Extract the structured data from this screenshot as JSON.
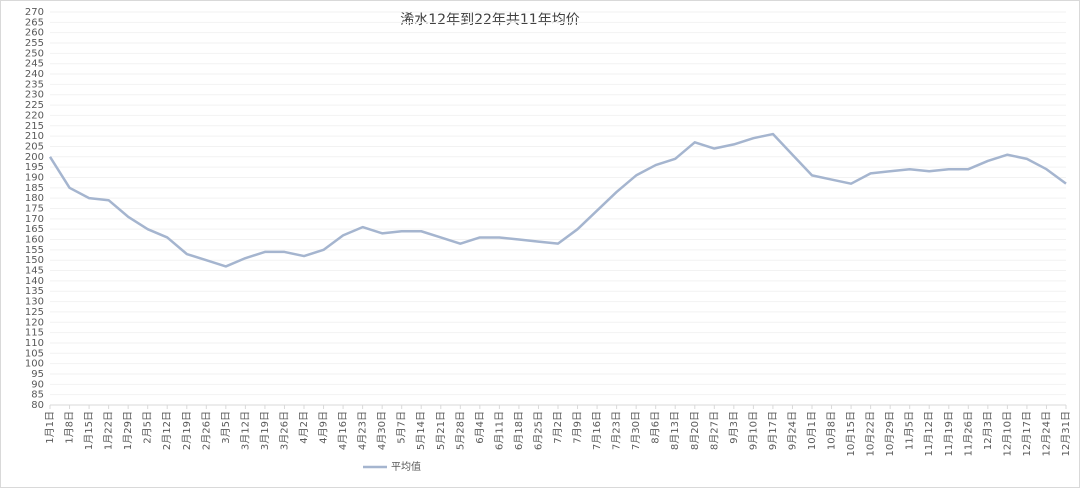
{
  "chart_data": {
    "type": "line",
    "title": "浠水12年到22年共11年均价",
    "categories": [
      "1月1日",
      "1月8日",
      "1月15日",
      "1月22日",
      "1月29日",
      "2月5日",
      "2月12日",
      "2月19日",
      "2月26日",
      "3月5日",
      "3月12日",
      "3月19日",
      "3月26日",
      "4月2日",
      "4月9日",
      "4月16日",
      "4月23日",
      "4月30日",
      "5月7日",
      "5月14日",
      "5月21日",
      "5月28日",
      "6月4日",
      "6月11日",
      "6月18日",
      "6月25日",
      "7月2日",
      "7月9日",
      "7月16日",
      "7月23日",
      "7月30日",
      "8月6日",
      "8月13日",
      "8月20日",
      "8月27日",
      "9月3日",
      "9月10日",
      "9月17日",
      "9月24日",
      "10月1日",
      "10月8日",
      "10月15日",
      "10月22日",
      "10月29日",
      "11月5日",
      "11月12日",
      "11月19日",
      "11月26日",
      "12月3日",
      "12月10日",
      "12月17日",
      "12月24日",
      "12月31日"
    ],
    "series": [
      {
        "name": "平均值",
        "color": "#a5b5cf",
        "values": [
          200,
          185,
          180,
          179,
          171,
          165,
          161,
          153,
          150,
          147,
          151,
          154,
          154,
          152,
          155,
          162,
          166,
          163,
          164,
          164,
          161,
          158,
          161,
          161,
          160,
          159,
          158,
          165,
          174,
          183,
          191,
          196,
          199,
          207,
          204,
          206,
          209,
          211,
          201,
          191,
          189,
          187,
          192,
          193,
          194,
          193,
          194,
          194,
          198,
          201,
          199,
          194,
          187
        ]
      }
    ],
    "ylim": [
      80,
      270
    ],
    "yticks": [
      80,
      85,
      90,
      95,
      100,
      105,
      110,
      115,
      120,
      125,
      130,
      135,
      140,
      145,
      150,
      155,
      160,
      165,
      170,
      175,
      180,
      185,
      190,
      195,
      200,
      205,
      210,
      215,
      220,
      225,
      230,
      235,
      240,
      245,
      250,
      255,
      260,
      265,
      270
    ],
    "legend": "bottom"
  }
}
